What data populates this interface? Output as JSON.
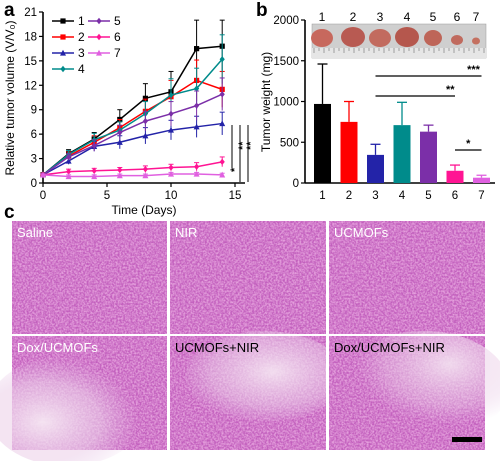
{
  "figure": {
    "panel_a_letter": "a",
    "panel_b_letter": "b",
    "panel_c_letter": "c"
  },
  "chart_data": [
    {
      "type": "line",
      "ylabel": "Relative tumor volume (V/V₀)",
      "xlabel": "Time (Days)",
      "xlim": [
        0,
        15
      ],
      "ylim": [
        0,
        21
      ],
      "x_ticks": [
        "0",
        "5",
        "10",
        "15"
      ],
      "y_ticks": [
        "0",
        "3",
        "6",
        "9",
        "12",
        "15",
        "18",
        "21"
      ],
      "x": [
        0,
        2,
        4,
        6,
        8,
        10,
        12,
        14
      ],
      "series": [
        {
          "name": "1",
          "color": "#000000",
          "marker": "square",
          "values": [
            1,
            3.6,
            5.4,
            7.8,
            10.4,
            11.2,
            16.5,
            16.8
          ],
          "err": [
            0.2,
            0.5,
            0.8,
            1.2,
            1.8,
            2.5,
            3.5,
            3.2
          ]
        },
        {
          "name": "2",
          "color": "#ff0000",
          "marker": "square",
          "values": [
            1,
            3.3,
            5.0,
            6.8,
            8.8,
            10.6,
            12.6,
            11.5
          ],
          "err": [
            0.2,
            0.5,
            0.8,
            1.0,
            1.5,
            2.0,
            2.5,
            2.2
          ]
        },
        {
          "name": "3",
          "color": "#2323a8",
          "marker": "triangle",
          "values": [
            1,
            2.7,
            4.5,
            5.0,
            5.8,
            6.5,
            6.9,
            7.3
          ],
          "err": [
            0.2,
            0.4,
            0.6,
            0.8,
            1.0,
            1.2,
            1.3,
            1.4
          ]
        },
        {
          "name": "4",
          "color": "#008b8b",
          "marker": "diamond",
          "values": [
            1,
            3.5,
            5.3,
            6.5,
            8.5,
            10.8,
            11.6,
            15.2
          ],
          "err": [
            0.2,
            0.5,
            0.8,
            1.0,
            1.5,
            2.0,
            2.5,
            3.0
          ]
        },
        {
          "name": "5",
          "color": "#7b2fa8",
          "marker": "diamond",
          "values": [
            1,
            3.2,
            4.6,
            6.2,
            7.6,
            8.5,
            9.5,
            10.9
          ],
          "err": [
            0.2,
            0.4,
            0.7,
            0.9,
            1.2,
            1.5,
            1.8,
            2.0
          ]
        },
        {
          "name": "6",
          "color": "#ff1493",
          "marker": "diamond",
          "values": [
            1,
            1.4,
            1.5,
            1.6,
            1.7,
            1.9,
            2.0,
            2.6
          ],
          "err": [
            0.1,
            0.3,
            0.3,
            0.3,
            0.4,
            0.4,
            0.5,
            0.6
          ]
        },
        {
          "name": "7",
          "color": "#e060e0",
          "marker": "triangle",
          "values": [
            1,
            0.8,
            0.8,
            0.9,
            0.9,
            1.1,
            1.1,
            1.0
          ],
          "err": [
            0.1,
            0.2,
            0.2,
            0.2,
            0.2,
            0.2,
            0.2,
            0.2
          ]
        }
      ],
      "significance": [
        "*",
        "**",
        "**"
      ],
      "legend": {
        "placement": "top-left"
      }
    },
    {
      "type": "bar",
      "ylabel": "Tumor weight (mg)",
      "categories": [
        "1",
        "2",
        "3",
        "4",
        "5",
        "6",
        "7"
      ],
      "values": [
        970,
        750,
        345,
        710,
        630,
        150,
        65
      ],
      "err": [
        490,
        250,
        130,
        280,
        80,
        70,
        30
      ],
      "colors": [
        "#000000",
        "#ff0000",
        "#2323a8",
        "#008b8b",
        "#7b2fa8",
        "#ff1493",
        "#e060e0"
      ],
      "ylim": [
        0,
        2000
      ],
      "y_ticks": [
        "0",
        "500",
        "1000",
        "1500",
        "2000"
      ],
      "significance": [
        {
          "from": "3",
          "to": "7",
          "label": "***"
        },
        {
          "from": "3",
          "to": "6",
          "label": "**"
        },
        {
          "from": "6",
          "to": "7",
          "label": "*"
        }
      ],
      "photo_labels": [
        "1",
        "2",
        "3",
        "4",
        "5",
        "6",
        "7"
      ]
    }
  ],
  "micrographs": [
    {
      "label": "Saline",
      "dark": false
    },
    {
      "label": "NIR",
      "dark": false
    },
    {
      "label": "UCMOFs",
      "dark": false
    },
    {
      "label": "Dox/UCMOFs",
      "dark": false
    },
    {
      "label": "UCMOFs+NIR",
      "dark": true
    },
    {
      "label": "Dox/UCMOFs+NIR",
      "dark": true
    }
  ]
}
